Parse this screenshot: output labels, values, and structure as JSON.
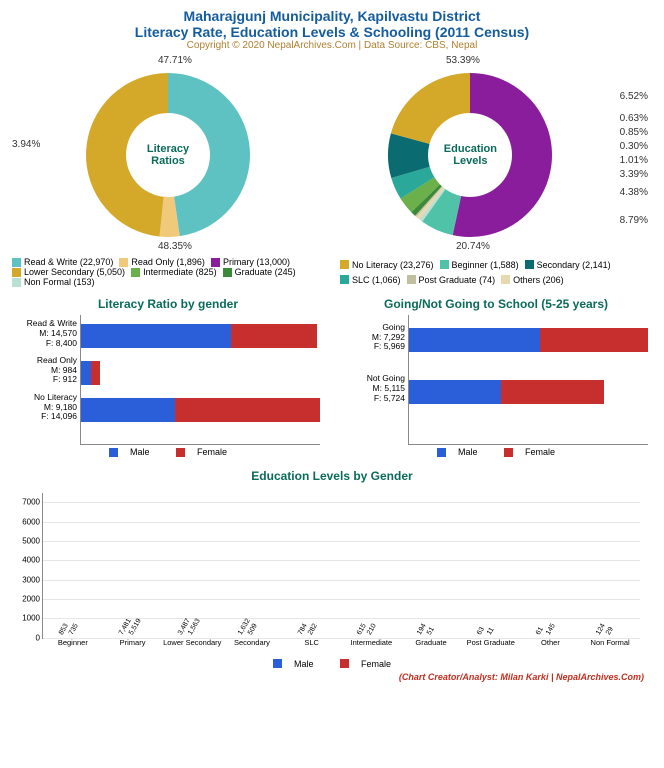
{
  "header": {
    "title": "Maharajgunj Municipality, Kapilvastu District",
    "subtitle": "Literacy Rate, Education Levels & Schooling (2011 Census)",
    "copyright": "Copyright © 2020 NepalArchives.Com | Data Source: CBS, Nepal"
  },
  "colors": {
    "male": "#2b5fd9",
    "female": "#c72f2f",
    "grid": "#e6e6e6",
    "axis": "#888888",
    "title": "#145c9e",
    "panel_title": "#0a6b5b"
  },
  "donut1": {
    "center_label": "Literacy\nRatios",
    "slices": [
      {
        "label": "Read & Write",
        "count": 22970,
        "pct": 47.71,
        "color": "#5ec2c2"
      },
      {
        "label": "Read Only",
        "count": 1896,
        "pct": 3.94,
        "color": "#f0c97a"
      },
      {
        "label": "No Literacy",
        "count": 23276,
        "pct": 48.35,
        "color": "#d4a829"
      }
    ],
    "pct_labels": [
      "47.71%",
      "3.94%",
      "48.35%"
    ]
  },
  "donut2": {
    "center_label": "Education\nLevels",
    "slices": [
      {
        "label": "Primary",
        "count": 13000,
        "pct": 53.39,
        "color": "#8a1d9c"
      },
      {
        "label": "Beginner",
        "count": 1588,
        "pct": 6.52,
        "color": "#4fc2a8"
      },
      {
        "label": "Non Formal",
        "count": 153,
        "pct": 0.63,
        "color": "#b8e0d4"
      },
      {
        "label": "Others",
        "count": 206,
        "pct": 0.85,
        "color": "#e8d8b0"
      },
      {
        "label": "Post Graduate",
        "count": 74,
        "pct": 0.3,
        "color": "#c0c0a0"
      },
      {
        "label": "Graduate",
        "count": 245,
        "pct": 1.01,
        "color": "#3a8a3a"
      },
      {
        "label": "Intermediate",
        "count": 825,
        "pct": 3.39,
        "color": "#6bb04a"
      },
      {
        "label": "SLC",
        "count": 1066,
        "pct": 4.38,
        "color": "#2aa89a"
      },
      {
        "label": "Secondary",
        "count": 2141,
        "pct": 8.79,
        "color": "#0a6b70"
      },
      {
        "label": "Lower Secondary",
        "count": 5050,
        "pct": 20.74,
        "color": "#d4a829"
      }
    ],
    "pct_labels": [
      "53.39%",
      "6.52%",
      "0.63%",
      "0.85%",
      "0.30%",
      "1.01%",
      "3.39%",
      "4.38%",
      "8.79%",
      "20.74%"
    ]
  },
  "legend1": [
    {
      "label": "Read & Write (22,970)",
      "color": "#5ec2c2"
    },
    {
      "label": "Read Only (1,896)",
      "color": "#f0c97a"
    },
    {
      "label": "Primary (13,000)",
      "color": "#8a1d9c"
    },
    {
      "label": "Lower Secondary (5,050)",
      "color": "#d4a829"
    },
    {
      "label": "Intermediate (825)",
      "color": "#6bb04a"
    },
    {
      "label": "Graduate (245)",
      "color": "#3a8a3a"
    },
    {
      "label": "Non Formal (153)",
      "color": "#b8e0d4"
    }
  ],
  "legend2": [
    {
      "label": "No Literacy (23,276)",
      "color": "#d4a829"
    },
    {
      "label": "Beginner (1,588)",
      "color": "#4fc2a8"
    },
    {
      "label": "Secondary (2,141)",
      "color": "#0a6b70"
    },
    {
      "label": "SLC (1,066)",
      "color": "#2aa89a"
    },
    {
      "label": "Post Graduate (74)",
      "color": "#c0c0a0"
    },
    {
      "label": "Others (206)",
      "color": "#e8d8b0"
    }
  ],
  "hbar1": {
    "title": "Literacy Ratio by gender",
    "max": 23276,
    "groups": [
      {
        "name": "Read & Write",
        "m_label": "M: 14,570",
        "f_label": "F: 8,400",
        "m": 14570,
        "f": 8400
      },
      {
        "name": "Read Only",
        "m_label": "M: 984",
        "f_label": "F: 912",
        "m": 984,
        "f": 912
      },
      {
        "name": "No Literacy",
        "m_label": "M: 9,180",
        "f_label": "F: 14,096",
        "m": 9180,
        "f": 14096
      }
    ],
    "legend": {
      "male": "Male",
      "female": "Female"
    }
  },
  "hbar2": {
    "title": "Going/Not Going to School (5-25 years)",
    "max": 13261,
    "groups": [
      {
        "name": "Going",
        "m_label": "M: 7,292",
        "f_label": "F: 5,969",
        "m": 7292,
        "f": 5969
      },
      {
        "name": "Not Going",
        "m_label": "M: 5,115",
        "f_label": "F: 5,724",
        "m": 5115,
        "f": 5724
      }
    ],
    "legend": {
      "male": "Male",
      "female": "Female"
    }
  },
  "vbar": {
    "title": "Education Levels by Gender",
    "ylim": 7500,
    "yticks": [
      0,
      1000,
      2000,
      3000,
      4000,
      5000,
      6000,
      7000
    ],
    "categories": [
      "Beginner",
      "Primary",
      "Lower Secondary",
      "Secondary",
      "SLC",
      "Intermediate",
      "Graduate",
      "Post Graduate",
      "Other",
      "Non Formal"
    ],
    "data": [
      {
        "m": 853,
        "f": 735,
        "ml": "853",
        "fl": "735"
      },
      {
        "m": 7481,
        "f": 5519,
        "ml": "7,481",
        "fl": "5,519"
      },
      {
        "m": 3487,
        "f": 1563,
        "ml": "3,487",
        "fl": "1,563"
      },
      {
        "m": 1632,
        "f": 509,
        "ml": "1,632",
        "fl": "509"
      },
      {
        "m": 784,
        "f": 282,
        "ml": "784",
        "fl": "282"
      },
      {
        "m": 615,
        "f": 210,
        "ml": "615",
        "fl": "210"
      },
      {
        "m": 194,
        "f": 51,
        "ml": "194",
        "fl": "51"
      },
      {
        "m": 63,
        "f": 11,
        "ml": "63",
        "fl": "11"
      },
      {
        "m": 61,
        "f": 145,
        "ml": "61",
        "fl": "145"
      },
      {
        "m": 124,
        "f": 29,
        "ml": "124",
        "fl": "29"
      }
    ],
    "legend": {
      "male": "Male",
      "female": "Female"
    }
  },
  "credit": "(Chart Creator/Analyst: Milan Karki | NepalArchives.Com)"
}
